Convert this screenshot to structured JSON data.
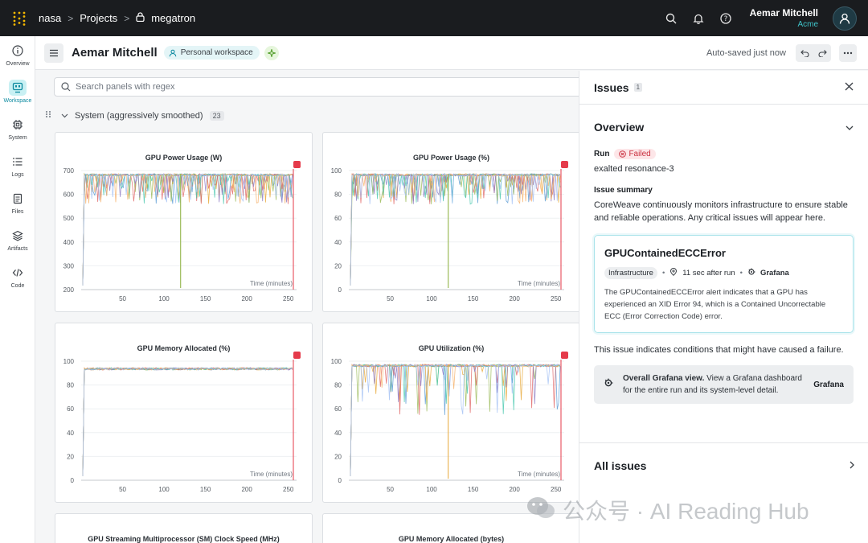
{
  "topbar": {
    "crumbs": [
      "nasa",
      "Projects",
      "megatron"
    ],
    "user_name": "Aemar Mitchell",
    "user_org": "Acme"
  },
  "sidebar": {
    "items": [
      {
        "label": "Overview",
        "icon": "info-icon"
      },
      {
        "label": "Workspace",
        "icon": "workspace-icon",
        "active": true
      },
      {
        "label": "System",
        "icon": "chip-icon"
      },
      {
        "label": "Logs",
        "icon": "list-icon"
      },
      {
        "label": "Files",
        "icon": "file-icon"
      },
      {
        "label": "Artifacts",
        "icon": "layers-icon"
      },
      {
        "label": "Code",
        "icon": "code-icon"
      }
    ]
  },
  "workspace": {
    "title": "Aemar Mitchell",
    "badge": "Personal workspace",
    "autosave": "Auto-saved just now"
  },
  "search": {
    "placeholder": "Search panels with regex"
  },
  "section": {
    "title": "System (aggressively smoothed)",
    "count": "23"
  },
  "panels": [
    {
      "title": "GPU Power Usage (W)",
      "yticks": [
        "700",
        "600",
        "500",
        "400",
        "300",
        "200"
      ],
      "xticks": [
        "50",
        "100",
        "150",
        "200",
        "250"
      ],
      "xlabel": "Time (minutes)"
    },
    {
      "title": "GPU Power Usage (%)",
      "yticks": [
        "100",
        "80",
        "60",
        "40",
        "20",
        "0"
      ],
      "xticks": [
        "50",
        "100",
        "150",
        "200",
        "250"
      ],
      "xlabel": "Time (minutes)"
    },
    {
      "title": "GPU Memory Allocated (%)",
      "yticks": [
        "100",
        "80",
        "60",
        "40",
        "20",
        "0"
      ],
      "xticks": [
        "50",
        "100",
        "150",
        "200",
        "250"
      ],
      "xlabel": "Time (minutes)"
    },
    {
      "title": "GPU Utilization (%)",
      "yticks": [
        "100",
        "80",
        "60",
        "40",
        "20",
        "0"
      ],
      "xticks": [
        "50",
        "100",
        "150",
        "200",
        "250"
      ],
      "xlabel": "Time (minutes)"
    },
    {
      "title": "GPU Streaming Multiprocessor (SM) Clock Speed (MHz)"
    },
    {
      "title": "GPU Memory Allocated (bytes)"
    }
  ],
  "issues": {
    "title": "Issues",
    "count": "1",
    "overview_title": "Overview",
    "run_label": "Run",
    "run_status": "Failed",
    "run_name": "exalted resonance-3",
    "summary_label": "Issue summary",
    "summary_text": "CoreWeave continuously monitors infrastructure to ensure stable and reliable operations. Any critical issues will appear here.",
    "error_title": "GPUContainedECCError",
    "error_tag": "Infrastructure",
    "error_time": "11 sec after run",
    "error_source": "Grafana",
    "error_desc": "The GPUContainedECCError alert indicates that a GPU has experienced an XID Error 94, which is a Contained Uncorrectable ECC (Error Correction Code) error.",
    "condition_text": "This issue indicates conditions that might have caused a failure.",
    "grafana_bold": "Overall Grafana view.",
    "grafana_text": " View a Grafana dashboard for the entire run and its system-level detail.",
    "grafana_link": "Grafana",
    "all_issues": "All issues"
  },
  "watermark": "公众号 · AI Reading Hub",
  "colors": {
    "accent": "#3fc3c9",
    "failed": "#c9303f",
    "flag": "#e53a4a",
    "topbar": "#1a1c1f"
  }
}
